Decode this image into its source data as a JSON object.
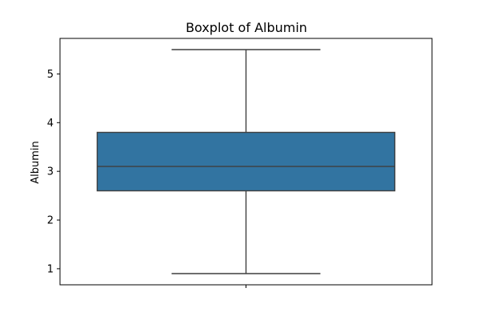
{
  "chart_data": {
    "type": "box",
    "title": "Boxplot of Albumin",
    "xlabel": "",
    "ylabel": "Albumin",
    "ylim": [
      0.67,
      5.73
    ],
    "yticks": [
      1,
      2,
      3,
      4,
      5
    ],
    "grid": false,
    "series": [
      {
        "whisker_low": 0.9,
        "q1": 2.6,
        "median": 3.1,
        "q3": 3.8,
        "whisker_high": 5.5
      }
    ],
    "colors": {
      "box_fill": "#3274a1",
      "line": "#3f3f3f",
      "axis": "#000000"
    }
  }
}
